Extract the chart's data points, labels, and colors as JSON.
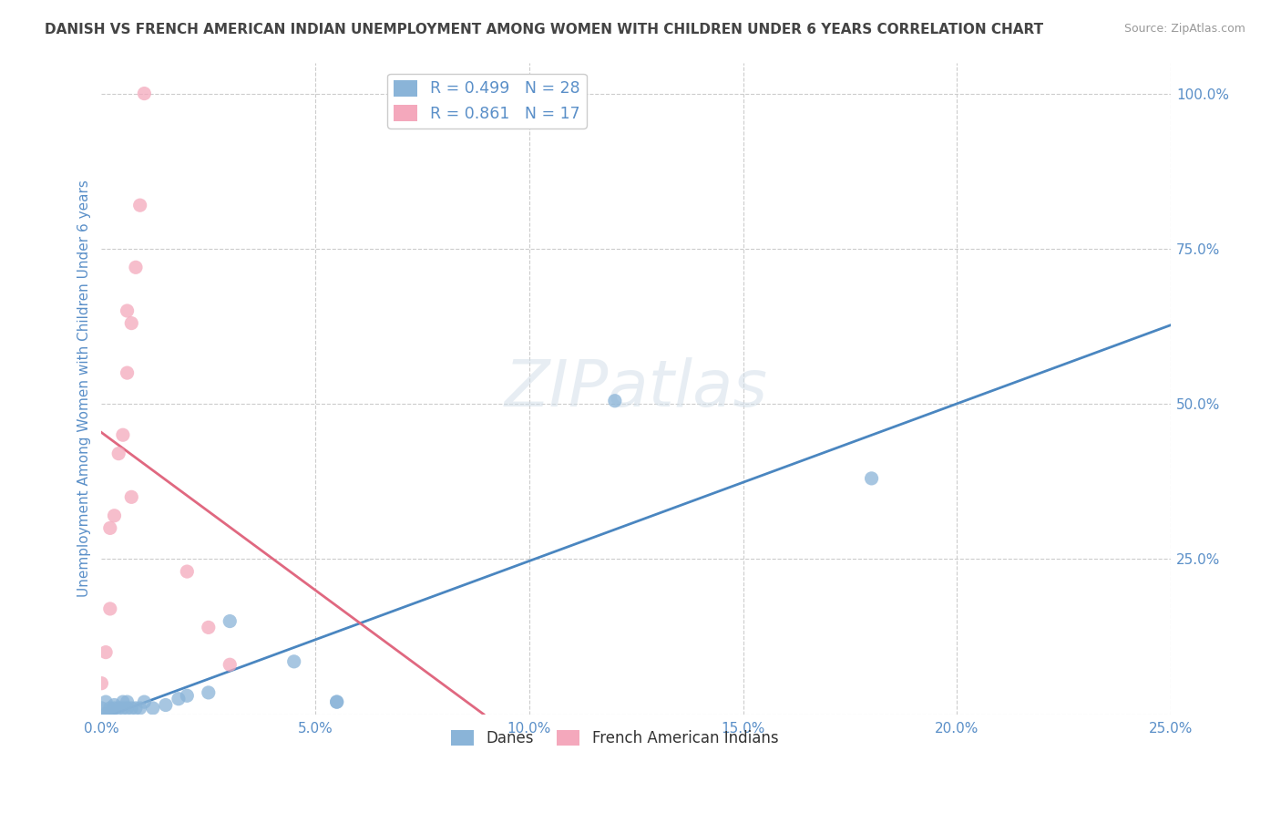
{
  "title": "DANISH VS FRENCH AMERICAN INDIAN UNEMPLOYMENT AMONG WOMEN WITH CHILDREN UNDER 6 YEARS CORRELATION CHART",
  "source": "Source: ZipAtlas.com",
  "ylabel": "Unemployment Among Women with Children Under 6 years",
  "xlim": [
    0.0,
    0.25
  ],
  "ylim": [
    0.0,
    1.05
  ],
  "legend_label1": "Danes",
  "legend_label2": "French American Indians",
  "R_danes": 0.499,
  "N_danes": 28,
  "R_french": 0.861,
  "N_french": 17,
  "color_danes": "#8ab4d8",
  "color_french": "#f4a8bc",
  "line_color_danes": "#4a86c0",
  "line_color_french": "#e06880",
  "danes_x": [
    0.0,
    0.0,
    0.001,
    0.001,
    0.002,
    0.002,
    0.003,
    0.003,
    0.004,
    0.005,
    0.005,
    0.006,
    0.006,
    0.007,
    0.008,
    0.009,
    0.01,
    0.012,
    0.015,
    0.018,
    0.02,
    0.025,
    0.03,
    0.045,
    0.055,
    0.055,
    0.12,
    0.18
  ],
  "danes_y": [
    0.0,
    0.01,
    0.0,
    0.02,
    0.0,
    0.01,
    0.01,
    0.015,
    0.01,
    0.01,
    0.02,
    0.01,
    0.02,
    0.01,
    0.01,
    0.01,
    0.02,
    0.01,
    0.015,
    0.025,
    0.03,
    0.035,
    0.15,
    0.085,
    0.02,
    0.02,
    0.505,
    0.38
  ],
  "french_x": [
    0.0,
    0.001,
    0.002,
    0.002,
    0.003,
    0.004,
    0.005,
    0.006,
    0.006,
    0.007,
    0.007,
    0.008,
    0.009,
    0.01,
    0.02,
    0.025,
    0.03
  ],
  "french_y": [
    0.05,
    0.1,
    0.17,
    0.3,
    0.32,
    0.42,
    0.45,
    0.55,
    0.65,
    0.35,
    0.63,
    0.72,
    0.82,
    1.0,
    0.23,
    0.14,
    0.08
  ],
  "watermark_text": "ZIPatlas",
  "background_color": "#ffffff",
  "grid_color": "#cccccc",
  "title_color": "#444444",
  "tick_color": "#5a8fc8"
}
